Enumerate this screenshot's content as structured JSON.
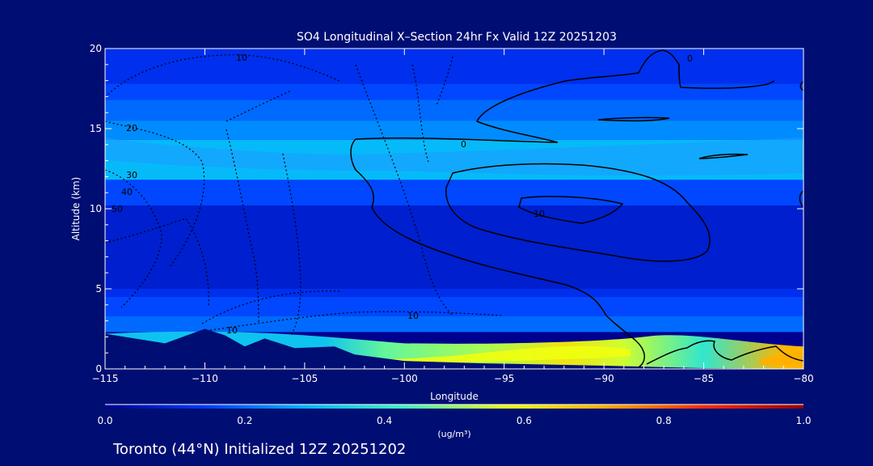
{
  "chart_data": {
    "type": "heatmap",
    "title": "SO4 Longitudinal X–Section 24hr  Fx Valid 12Z 20251203",
    "xlabel": "Longitude",
    "ylabel": "Altitude (km)",
    "xlim": [
      -115,
      -80
    ],
    "ylim": [
      0,
      20
    ],
    "x_ticks": [
      -115,
      -110,
      -105,
      -100,
      -95,
      -90,
      -85,
      -80
    ],
    "x_tick_labels": [
      "−115",
      "−110",
      "−105",
      "−100",
      "−95",
      "−90",
      "−85",
      "−80"
    ],
    "y_ticks": [
      0,
      5,
      10,
      15,
      20
    ],
    "y_tick_labels": [
      "0",
      "5",
      "10",
      "15",
      "20"
    ],
    "colorbar": {
      "min": 0.0,
      "max": 1.0,
      "tick_values": [
        0.0,
        0.2,
        0.4,
        0.6,
        0.8,
        1.0
      ],
      "tick_labels": [
        "0.0",
        "0.2",
        "0.4",
        "0.6",
        "0.8",
        "1.0"
      ],
      "unit_label": "(ug/m³)",
      "colors": [
        "#00008f",
        "#0038ff",
        "#00b4ff",
        "#3ef3c0",
        "#e6ff18",
        "#ffae00",
        "#ff2a00",
        "#960000"
      ]
    },
    "background_bands": [
      {
        "z_range": [
          17.8,
          20
        ],
        "value": 0.12
      },
      {
        "z_range": [
          16.8,
          17.8
        ],
        "value": 0.16
      },
      {
        "z_range": [
          15.5,
          16.8
        ],
        "value": 0.2
      },
      {
        "z_range": [
          14.3,
          15.5
        ],
        "value": 0.24
      },
      {
        "z_range": [
          11.8,
          14.3
        ],
        "value": 0.3
      },
      {
        "z_range": [
          10.2,
          11.8
        ],
        "value": 0.16
      },
      {
        "z_range": [
          5,
          10.2
        ],
        "value": 0.08
      },
      {
        "z_range": [
          4.5,
          5
        ],
        "value": 0.12
      },
      {
        "z_range": [
          3.3,
          4.5
        ],
        "value": 0.16
      },
      {
        "z_range": [
          2.3,
          3.3
        ],
        "value": 0.2
      }
    ],
    "surface_layer": [
      {
        "lon": -104,
        "value": 0.32
      },
      {
        "lon": -101,
        "value": 0.46
      },
      {
        "lon": -96,
        "value": 0.52
      },
      {
        "lon": -92,
        "value": 0.62
      },
      {
        "lon": -89,
        "value": 0.55
      },
      {
        "lon": -85,
        "value": 0.4
      },
      {
        "lon": -81,
        "value": 0.7
      }
    ],
    "terrain_outline": [
      {
        "lon": -115,
        "z": 2.2
      },
      {
        "lon": -112,
        "z": 1.6
      },
      {
        "lon": -110,
        "z": 2.5
      },
      {
        "lon": -109,
        "z": 2.1
      },
      {
        "lon": -108,
        "z": 1.4
      },
      {
        "lon": -107,
        "z": 1.9
      },
      {
        "lon": -105.5,
        "z": 1.3
      },
      {
        "lon": -103.5,
        "z": 1.4
      },
      {
        "lon": -102.5,
        "z": 0.9
      },
      {
        "lon": -100,
        "z": 0.5
      },
      {
        "lon": -96,
        "z": 0.35
      },
      {
        "lon": -90,
        "z": 0.2
      },
      {
        "lon": -85,
        "z": 0.05
      },
      {
        "lon": -80,
        "z": 0
      }
    ],
    "contour_labels": [
      "10",
      "20",
      "30",
      "40",
      "50",
      "0",
      "10",
      "10",
      "10",
      "0"
    ]
  },
  "footer": {
    "text": "Toronto (44°N) Initialized 12Z 20251202"
  }
}
